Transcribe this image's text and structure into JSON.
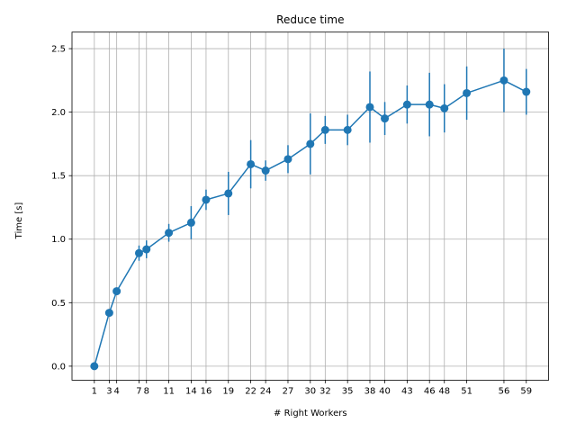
{
  "chart_data": {
    "type": "line",
    "title": "Reduce time",
    "xlabel": "# Right Workers",
    "ylabel": "Time [s]",
    "x": [
      1,
      3,
      4,
      7,
      8,
      11,
      14,
      16,
      19,
      22,
      24,
      27,
      30,
      32,
      35,
      38,
      40,
      43,
      46,
      48,
      51,
      56,
      59
    ],
    "x_ticks": [
      "1",
      "3",
      "4",
      "7",
      "8",
      "11",
      "14",
      "16",
      "19",
      "22",
      "24",
      "27",
      "30",
      "32",
      "35",
      "38",
      "40",
      "43",
      "46",
      "48",
      "51",
      "56",
      "59"
    ],
    "series": [
      {
        "values": [
          0.0,
          0.42,
          0.59,
          0.89,
          0.92,
          1.05,
          1.13,
          1.31,
          1.36,
          1.59,
          1.54,
          1.63,
          1.75,
          1.86,
          1.86,
          2.04,
          1.95,
          2.06,
          2.06,
          2.03,
          2.15,
          2.25,
          2.16
        ],
        "error": [
          0.0,
          0.02,
          0.03,
          0.06,
          0.07,
          0.07,
          0.13,
          0.08,
          0.17,
          0.19,
          0.08,
          0.11,
          0.24,
          0.11,
          0.12,
          0.28,
          0.13,
          0.15,
          0.25,
          0.19,
          0.21,
          0.25,
          0.18
        ],
        "color": "#1f77b4"
      }
    ],
    "y_ticks": [
      "0.0",
      "0.5",
      "1.0",
      "1.5",
      "2.0",
      "2.5"
    ],
    "xlim": [
      -2.0,
      62.0
    ],
    "ylim": [
      -0.11,
      2.63
    ],
    "grid": true,
    "grid_color": "#b0b0b0"
  }
}
